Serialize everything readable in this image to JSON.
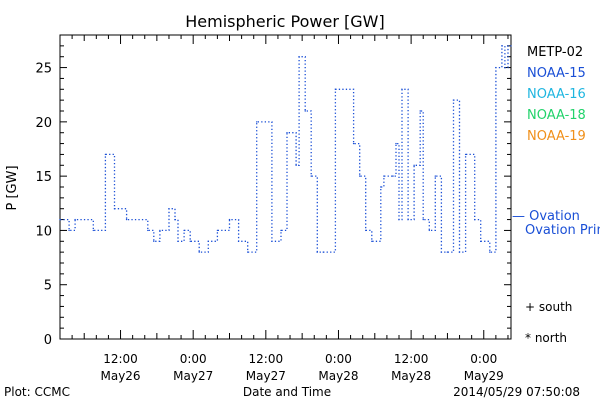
{
  "chart_data": {
    "type": "line",
    "title": "Hemispheric Power [GW]",
    "xlabel": "Date and Time",
    "ylabel": "P [GW]",
    "ylim": [
      0,
      28
    ],
    "yticks": [
      0,
      5,
      10,
      15,
      20,
      25
    ],
    "xlim_hours": [
      -22.0,
      52.5
    ],
    "xticks": [
      {
        "hour": -12,
        "top": "12:00",
        "bottom": "May26"
      },
      {
        "hour": 0,
        "top": "0:00",
        "bottom": "May27"
      },
      {
        "hour": 12,
        "top": "12:00",
        "bottom": "May27"
      },
      {
        "hour": 24,
        "top": "0:00",
        "bottom": "May28"
      },
      {
        "hour": 36,
        "top": "12:00",
        "bottom": "May28"
      },
      {
        "hour": 48,
        "top": "0:00",
        "bottom": "May29"
      }
    ],
    "series": [
      {
        "name": "NOAA-15",
        "style": "dotted-step",
        "color": "#1a4fd6",
        "x_hours": [
          -22.0,
          -20.5,
          -19.5,
          -16.5,
          -14.5,
          -13.0,
          -11.0,
          -7.5,
          -6.5,
          -5.5,
          -4.0,
          -3.0,
          -2.5,
          -1.5,
          -0.5,
          1.0,
          2.5,
          4.0,
          6.0,
          7.5,
          9.0,
          10.5,
          13.0,
          14.5,
          15.5,
          17.0,
          17.5,
          18.5,
          19.5,
          20.5,
          21.5,
          23.5,
          26.5,
          27.5,
          28.5,
          29.5,
          31.0,
          31.5,
          33.0,
          33.5,
          34.0,
          34.5,
          35.5,
          36.5,
          37.5,
          38.0,
          39.0,
          40.0,
          41.0,
          42.0,
          43.0,
          44.0,
          45.0,
          46.5,
          47.5,
          49.0,
          50.0,
          51.0,
          51.5,
          52.0,
          52.5
        ],
        "values": [
          11,
          10,
          11,
          10,
          17,
          12,
          11,
          10,
          9,
          10,
          12,
          11,
          9,
          10,
          9,
          8,
          9,
          10,
          11,
          9,
          8,
          20,
          9,
          10,
          19,
          16,
          26,
          21,
          15,
          8,
          8,
          23,
          18,
          15,
          10,
          9,
          14,
          15,
          15,
          18,
          11,
          23,
          11,
          16,
          21,
          11,
          10,
          15,
          8,
          8,
          22,
          8,
          17,
          11,
          9,
          8,
          25,
          27,
          25,
          27,
          27
        ]
      }
    ],
    "legend": [
      "METP-02",
      "NOAA-15",
      "NOAA-16",
      "NOAA-18",
      "NOAA-19"
    ],
    "legend_colors": {
      "METP-02": "#000000",
      "NOAA-15": "#1a4fd6",
      "NOAA-16": "#1fb6e0",
      "NOAA-18": "#22d36b",
      "NOAA-19": "#f0901a"
    },
    "legend_placement": "right",
    "reference": {
      "label": "Ovation Prime HPI",
      "dash": "— Ovation",
      "value": 11.5,
      "color": "#1a4fd6"
    },
    "markers": [
      {
        "symbol": "+",
        "label": "south"
      },
      {
        "symbol": "*",
        "label": "north"
      }
    ],
    "footer": {
      "left": "Plot: CCMC",
      "center": "Date and Time",
      "right": "2014/05/29 07:50:08"
    },
    "grid": false
  }
}
